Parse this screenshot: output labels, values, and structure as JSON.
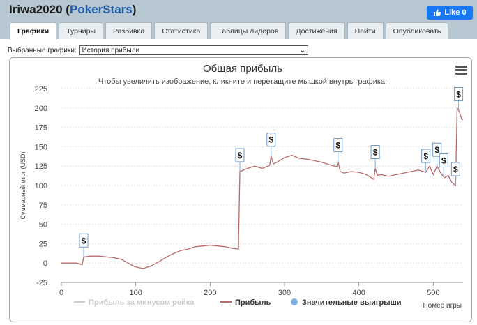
{
  "header": {
    "player": "Iriwa2020",
    "open_paren": "(",
    "site": "PokerStars",
    "close_paren": ")",
    "like_label": "Like 0",
    "accent": "#1877f2"
  },
  "tabs": [
    {
      "label": "Графики",
      "active": true
    },
    {
      "label": "Турниры"
    },
    {
      "label": "Разбивка"
    },
    {
      "label": "Статистика"
    },
    {
      "label": "Таблицы лидеров"
    },
    {
      "label": "Достижения"
    },
    {
      "label": "Найти"
    },
    {
      "label": "Опубликовать"
    }
  ],
  "selector": {
    "label": "Выбранные графики:",
    "value": "История прибыли"
  },
  "chart_data": {
    "type": "line",
    "title": "Общая прибыль",
    "subtitle": "Чтобы увеличить изображение, кликните и перетащите мышкой внутрь графика.",
    "xlabel": "Номер игры",
    "ylabel": "Суммарный итог (USD)",
    "xlim": [
      0,
      540
    ],
    "ylim": [
      -25,
      225
    ],
    "xticks": [
      0,
      100,
      200,
      300,
      400,
      500
    ],
    "yticks": [
      -25,
      0,
      25,
      50,
      75,
      100,
      125,
      150,
      175,
      200,
      225
    ],
    "grid": true,
    "legend_position": "bottom",
    "series": [
      {
        "name": "Прибыль за минусом рейка",
        "color": "#cccccc",
        "visible": false,
        "points": []
      },
      {
        "name": "Прибыль",
        "color": "#b86b6b",
        "points": [
          [
            0,
            0
          ],
          [
            10,
            0
          ],
          [
            20,
            0
          ],
          [
            28,
            -2
          ],
          [
            30,
            8
          ],
          [
            40,
            9
          ],
          [
            50,
            9
          ],
          [
            60,
            8
          ],
          [
            70,
            7
          ],
          [
            80,
            5
          ],
          [
            90,
            0
          ],
          [
            95,
            -3
          ],
          [
            100,
            -5
          ],
          [
            110,
            -7
          ],
          [
            120,
            -4
          ],
          [
            130,
            1
          ],
          [
            140,
            7
          ],
          [
            150,
            12
          ],
          [
            160,
            16
          ],
          [
            170,
            18
          ],
          [
            180,
            21
          ],
          [
            190,
            22
          ],
          [
            200,
            23
          ],
          [
            210,
            22
          ],
          [
            220,
            21
          ],
          [
            230,
            19
          ],
          [
            238,
            18
          ],
          [
            240,
            118
          ],
          [
            250,
            122
          ],
          [
            260,
            125
          ],
          [
            270,
            122
          ],
          [
            280,
            126
          ],
          [
            282,
            138
          ],
          [
            285,
            128
          ],
          [
            290,
            130
          ],
          [
            300,
            136
          ],
          [
            310,
            139
          ],
          [
            320,
            135
          ],
          [
            330,
            134
          ],
          [
            340,
            132
          ],
          [
            350,
            130
          ],
          [
            360,
            127
          ],
          [
            370,
            124
          ],
          [
            372,
            131
          ],
          [
            375,
            118
          ],
          [
            380,
            116
          ],
          [
            390,
            118
          ],
          [
            400,
            117
          ],
          [
            410,
            114
          ],
          [
            420,
            108
          ],
          [
            422,
            122
          ],
          [
            425,
            113
          ],
          [
            430,
            114
          ],
          [
            440,
            112
          ],
          [
            450,
            114
          ],
          [
            460,
            116
          ],
          [
            470,
            118
          ],
          [
            480,
            120
          ],
          [
            490,
            117
          ],
          [
            495,
            125
          ],
          [
            500,
            114
          ],
          [
            505,
            125
          ],
          [
            510,
            116
          ],
          [
            515,
            110
          ],
          [
            520,
            113
          ],
          [
            525,
            104
          ],
          [
            530,
            100
          ],
          [
            532,
            200
          ],
          [
            535,
            195
          ],
          [
            538,
            186
          ],
          [
            540,
            185
          ]
        ]
      }
    ],
    "significant_wins": {
      "name": "Значительные выигрыши",
      "color": "#7eb0e0",
      "marker_label": "$",
      "x": [
        30,
        240,
        282,
        372,
        422,
        490,
        505,
        514,
        530,
        534
      ]
    }
  }
}
